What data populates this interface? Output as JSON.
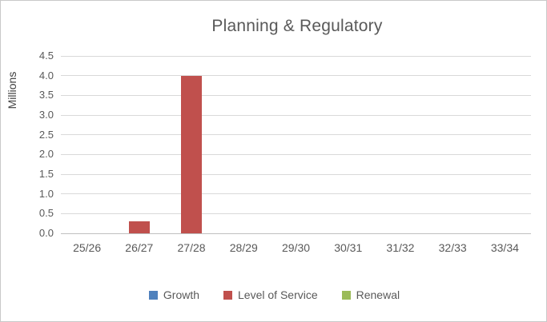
{
  "chart_data": {
    "type": "bar",
    "title": "Planning & Regulatory",
    "y_axis_title": "Millions",
    "categories": [
      "25/26",
      "26/27",
      "27/28",
      "28/29",
      "29/30",
      "30/31",
      "31/32",
      "32/33",
      "33/34"
    ],
    "series": [
      {
        "name": "Growth",
        "color": "#4F81BD",
        "values": [
          0,
          0,
          0,
          0,
          0,
          0,
          0,
          0,
          0
        ]
      },
      {
        "name": "Level of Service",
        "color": "#C0504D",
        "values": [
          0,
          0.3,
          4.0,
          0,
          0,
          0,
          0,
          0,
          0
        ]
      },
      {
        "name": "Renewal",
        "color": "#9BBB59",
        "values": [
          0,
          0,
          0,
          0,
          0,
          0,
          0,
          0,
          0
        ]
      }
    ],
    "ylim": [
      0,
      4.5
    ],
    "ytick_step": 0.5,
    "ytick_labels": [
      "0.0",
      "0.5",
      "1.0",
      "1.5",
      "2.0",
      "2.5",
      "3.0",
      "3.5",
      "4.0",
      "4.5"
    ],
    "grid": true,
    "legend_position": "bottom",
    "colors": {
      "text": "#595959",
      "gridline": "#D9D9D9",
      "axis_line": "#BFBFBF",
      "background": "#FFFFFF",
      "frame_border": "#C9C9C9"
    }
  }
}
